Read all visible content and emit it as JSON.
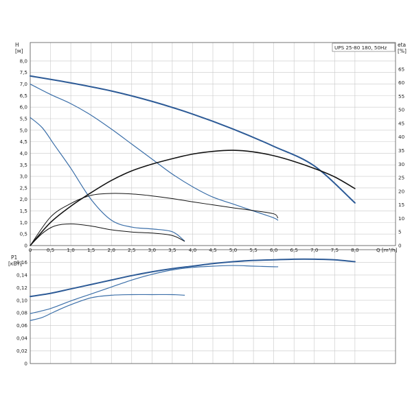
{
  "chart_data": [
    {
      "type": "line",
      "legend": "UPS 25-80 180, 50Hz",
      "x_label": "Q [m³/h]",
      "y_label_left": "H",
      "y_unit_left": "[м]",
      "y_label_right": "eta",
      "y_unit_right": "[%]",
      "xlim": [
        0,
        9
      ],
      "ylim_left": [
        0,
        8.8
      ],
      "ylim_right": [
        0,
        74.8
      ],
      "x_ticks": [
        "0",
        "0,5",
        "1,0",
        "1,5",
        "2,0",
        "2,5",
        "3,0",
        "3,5",
        "4,0",
        "4,5",
        "5,0",
        "5,5",
        "6,0",
        "6,5",
        "7,0",
        "7,5",
        "8,0"
      ],
      "y_ticks_left": [
        "0",
        "0,5",
        "1,0",
        "1,5",
        "2,0",
        "2,5",
        "3,0",
        "3,5",
        "4,0",
        "4,5",
        "5,0",
        "5,5",
        "6,0",
        "6,5",
        "7,0",
        "7,5",
        "8,0"
      ],
      "y_ticks_right": [
        "0",
        "5",
        "10",
        "15",
        "20",
        "25",
        "30",
        "35",
        "40",
        "45",
        "50",
        "55",
        "60",
        "65"
      ],
      "grid": true,
      "series": [
        {
          "axis": "left",
          "color": "#2c5a96",
          "width": 2.0,
          "x": [
            0,
            1,
            2,
            3,
            4,
            5,
            6,
            7,
            8
          ],
          "y": [
            7.35,
            7.05,
            6.7,
            6.25,
            5.7,
            5.05,
            4.3,
            3.45,
            1.85
          ]
        },
        {
          "axis": "left",
          "color": "#3a6ea8",
          "width": 1.2,
          "x": [
            0,
            0.5,
            1,
            1.5,
            2,
            2.5,
            3,
            3.5,
            4,
            4.5,
            5,
            5.5,
            6,
            6.1
          ],
          "y": [
            7.0,
            6.55,
            6.15,
            5.65,
            5.05,
            4.4,
            3.75,
            3.1,
            2.55,
            2.1,
            1.8,
            1.5,
            1.2,
            1.1
          ]
        },
        {
          "axis": "left",
          "color": "#3a6ea8",
          "width": 1.2,
          "x": [
            0,
            0.3,
            0.6,
            1,
            1.5,
            2,
            2.5,
            3,
            3.5,
            3.8
          ],
          "y": [
            5.55,
            5.1,
            4.35,
            3.35,
            2.0,
            1.1,
            0.8,
            0.72,
            0.6,
            0.2
          ]
        },
        {
          "axis": "right",
          "color": "#111111",
          "width": 1.6,
          "x": [
            0,
            0.5,
            1,
            1.5,
            2,
            2.5,
            3,
            3.5,
            4,
            4.5,
            5,
            5.5,
            6,
            6.5,
            7,
            7.5,
            8
          ],
          "y": [
            0,
            8.5,
            14.5,
            19.5,
            24,
            27.5,
            30,
            32,
            33.7,
            34.7,
            35.1,
            34.5,
            33.1,
            31.0,
            28.4,
            25.3,
            21.0
          ]
        },
        {
          "axis": "right",
          "color": "#111111",
          "width": 1.0,
          "x": [
            0,
            0.5,
            1,
            1.5,
            2,
            2.5,
            3,
            3.5,
            4,
            4.5,
            5,
            5.5,
            6,
            6.1
          ],
          "y": [
            0,
            10.5,
            15.5,
            18.5,
            19.2,
            19.0,
            18.3,
            17.3,
            16.1,
            15.0,
            13.9,
            12.9,
            11.7,
            10.2
          ]
        },
        {
          "axis": "right",
          "color": "#111111",
          "width": 1.0,
          "x": [
            0,
            0.3,
            0.6,
            1,
            1.5,
            2,
            2.5,
            3,
            3.5,
            3.8
          ],
          "y": [
            0,
            4.5,
            7.2,
            8.0,
            7.2,
            5.8,
            5.0,
            4.6,
            3.7,
            1.6
          ]
        }
      ]
    },
    {
      "type": "line",
      "y_label_left": "P1",
      "y_unit_left": "[кВт]",
      "xlim": [
        0,
        9
      ],
      "ylim_left": [
        0,
        0.18
      ],
      "y_ticks_left": [
        "0",
        "0,02",
        "0,04",
        "0,06",
        "0,08",
        "0,10",
        "0,12",
        "0,14",
        "0,16"
      ],
      "grid": true,
      "series": [
        {
          "axis": "left",
          "color": "#2c5a96",
          "width": 2.0,
          "x": [
            0,
            0.5,
            1,
            1.5,
            2,
            2.5,
            3,
            3.5,
            4,
            4.5,
            5,
            5.5,
            6,
            6.5,
            7,
            7.5,
            8
          ],
          "y": [
            0.106,
            0.111,
            0.118,
            0.125,
            0.132,
            0.139,
            0.145,
            0.15,
            0.154,
            0.158,
            0.161,
            0.163,
            0.164,
            0.165,
            0.165,
            0.164,
            0.161
          ]
        },
        {
          "axis": "left",
          "color": "#3a6ea8",
          "width": 1.2,
          "x": [
            0,
            0.5,
            1,
            1.5,
            2,
            2.5,
            3,
            3.5,
            4,
            4.5,
            5,
            5.5,
            6,
            6.1
          ],
          "y": [
            0.079,
            0.087,
            0.099,
            0.11,
            0.121,
            0.132,
            0.141,
            0.148,
            0.152,
            0.154,
            0.155,
            0.154,
            0.153,
            0.153
          ]
        },
        {
          "axis": "left",
          "color": "#3a6ea8",
          "width": 1.2,
          "x": [
            0,
            0.3,
            0.6,
            1,
            1.5,
            2,
            2.5,
            3,
            3.5,
            3.8
          ],
          "y": [
            0.068,
            0.073,
            0.082,
            0.093,
            0.104,
            0.108,
            0.109,
            0.109,
            0.109,
            0.108
          ]
        }
      ]
    }
  ]
}
